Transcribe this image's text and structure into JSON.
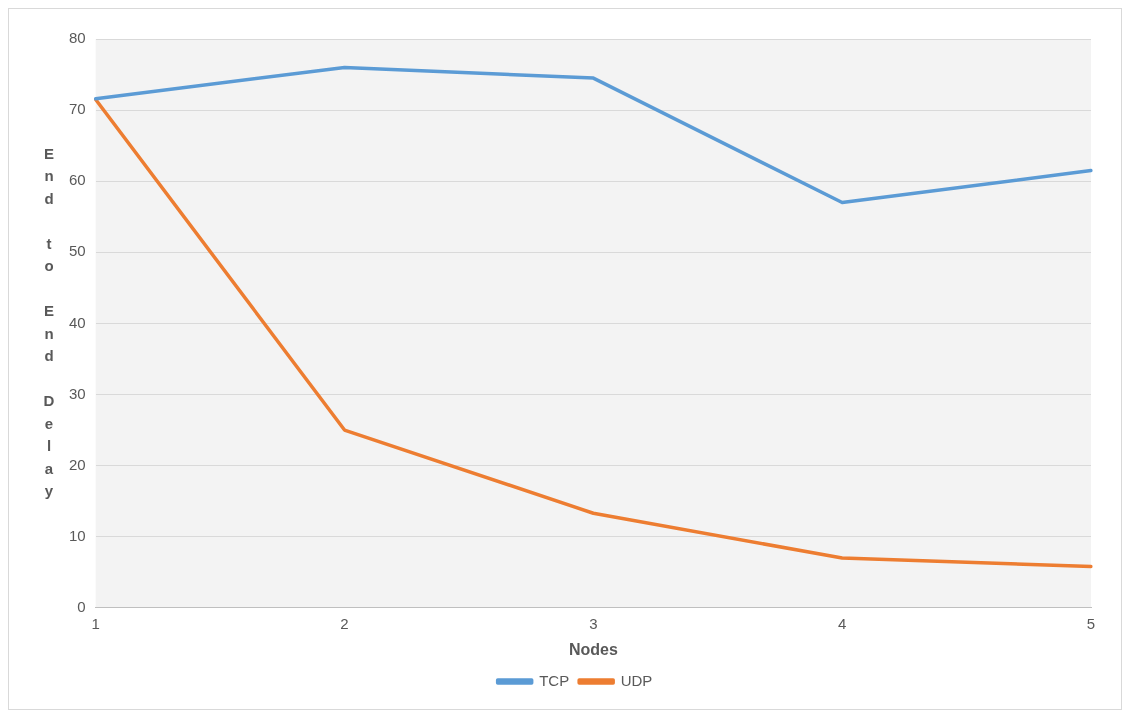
{
  "chart_data": {
    "type": "line",
    "xlabel": "Nodes",
    "ylabel": "End to End Delay",
    "categories": [
      "1",
      "2",
      "3",
      "4",
      "5"
    ],
    "series": [
      {
        "name": "TCP",
        "color": "#5b9bd5",
        "values": [
          71.6,
          76,
          74.5,
          57,
          61.5
        ]
      },
      {
        "name": "UDP",
        "color": "#ed7d31",
        "values": [
          71.5,
          25,
          13.3,
          7,
          5.8
        ]
      }
    ],
    "ylim": [
      0,
      80
    ],
    "yticks": [
      0,
      10,
      20,
      30,
      40,
      50,
      60,
      70,
      80
    ],
    "grid": "y",
    "legend": "bottom",
    "marker": "none",
    "line_style": "solid"
  }
}
